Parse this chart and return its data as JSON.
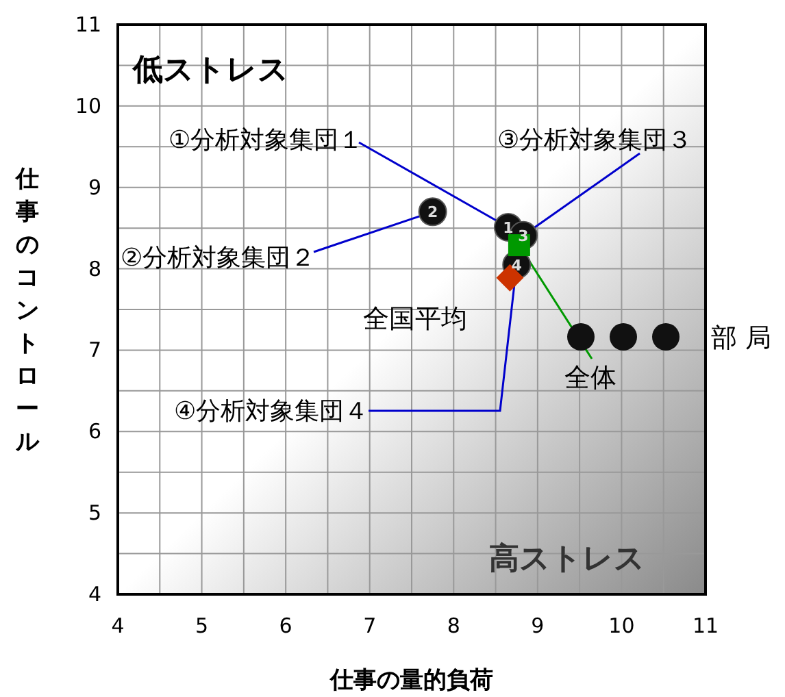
{
  "chart_data": {
    "type": "scatter",
    "xlabel": "仕事の量的負荷",
    "ylabel": "仕事のコントロール",
    "xlim": [
      4,
      11
    ],
    "ylim": [
      4,
      11
    ],
    "xticks": [
      4,
      5,
      6,
      7,
      8,
      9,
      10,
      11
    ],
    "yticks": [
      4,
      5,
      6,
      7,
      8,
      9,
      10,
      11
    ],
    "grid": true,
    "legend": "right",
    "series": [
      {
        "name": "部 局",
        "color": "#111111",
        "marker": "circle",
        "x": [
          8.65,
          7.75,
          8.83,
          8.75
        ],
        "values": [
          8.51,
          8.7,
          8.41,
          8.05
        ]
      },
      {
        "name": "全体",
        "color": "#009900",
        "marker": "square",
        "x": [
          8.78
        ],
        "values": [
          8.29
        ]
      },
      {
        "name": "全国平均",
        "color": "#cc3300",
        "marker": "diamond",
        "x": [
          8.67
        ],
        "values": [
          7.89
        ]
      }
    ],
    "annotations": [
      "低ストレス",
      "高ストレス",
      {
        "text": "①分析対象集団１",
        "x": 8.65,
        "y": 8.51
      },
      {
        "text": "②分析対象集団２",
        "x": 7.75,
        "y": 8.7
      },
      {
        "text": "③分析対象集団３",
        "x": 8.83,
        "y": 8.41
      },
      {
        "text": "④分析対象集団４",
        "x": 8.75,
        "y": 8.05
      },
      {
        "text": "1",
        "x": 8.65,
        "y": 8.51
      },
      {
        "text": "2",
        "x": 7.75,
        "y": 8.7
      },
      {
        "text": "3",
        "x": 8.83,
        "y": 8.41
      },
      {
        "text": "4",
        "x": 8.75,
        "y": 8.05
      }
    ]
  }
}
